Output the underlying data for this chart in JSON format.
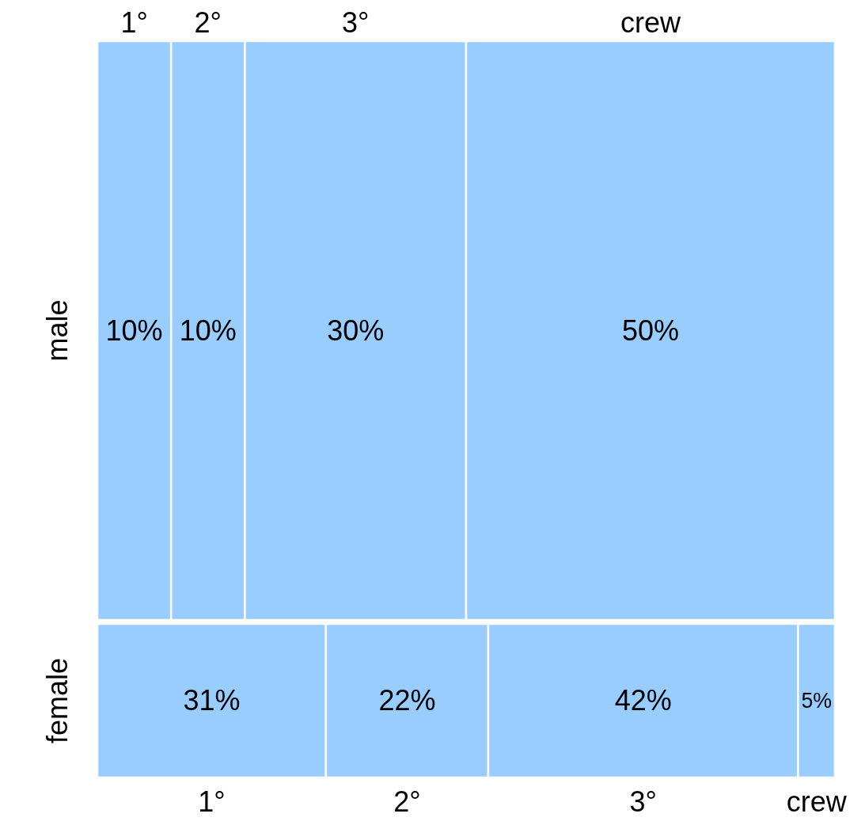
{
  "chart_data": {
    "type": "other",
    "categories": [
      "1°",
      "2°",
      "3°",
      "crew"
    ],
    "series": [
      {
        "name": "male",
        "color": "#99ccff",
        "values": [
          10,
          10,
          30,
          50
        ],
        "value_labels": [
          "10%",
          "10%",
          "30%",
          "50%"
        ]
      },
      {
        "name": "female",
        "color": "#99ccff",
        "values": [
          31,
          22,
          42,
          5
        ],
        "value_labels": [
          "31%",
          "22%",
          "42%",
          "5%"
        ]
      }
    ]
  }
}
